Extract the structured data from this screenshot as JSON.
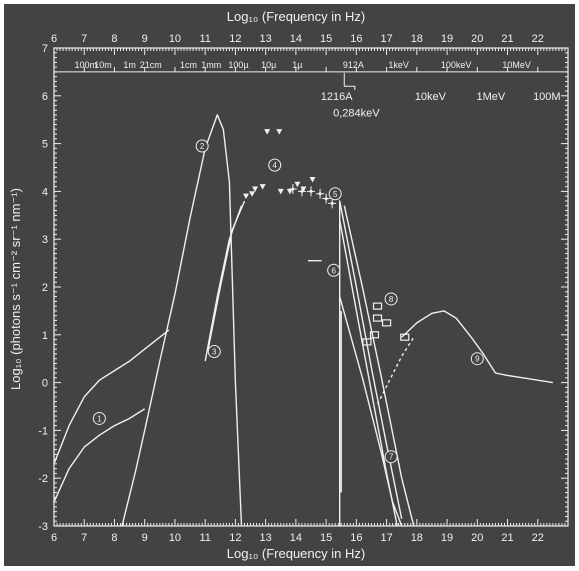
{
  "chart_data": {
    "type": "line",
    "title": "Log₁₀ (Frequency in Hz)",
    "xlabel": "Log₁₀ (Frequency in Hz)",
    "ylabel": "Log₁₀ (photons s⁻¹ cm⁻² sr⁻¹ nm⁻¹)",
    "xlim": [
      6,
      23
    ],
    "ylim": [
      -3,
      7
    ],
    "grid": false,
    "xticks": [
      "6",
      "7",
      "8",
      "9",
      "10",
      "11",
      "12",
      "13",
      "14",
      "15",
      "16",
      "17",
      "18",
      "19",
      "20",
      "21",
      "22"
    ],
    "yticks": [
      "7",
      "6",
      "5",
      "4",
      "3",
      "2",
      "1",
      "0",
      "-1",
      "-2",
      "-3"
    ],
    "wavelength_labels": [
      {
        "text": "100m",
        "x": 7.05
      },
      {
        "text": "10m",
        "x": 7.62
      },
      {
        "text": "1m",
        "x": 8.5
      },
      {
        "text": "21cm",
        "x": 9.2
      },
      {
        "text": "1cm",
        "x": 10.45
      },
      {
        "text": "1mm",
        "x": 11.2
      },
      {
        "text": "100µ",
        "x": 12.1
      },
      {
        "text": "10µ",
        "x": 13.1
      },
      {
        "text": "1µ",
        "x": 14.05
      },
      {
        "text": "912A",
        "x": 15.9
      },
      {
        "text": "1keV",
        "x": 17.4
      },
      {
        "text": "100keV",
        "x": 19.3
      },
      {
        "text": "10MeV",
        "x": 21.3
      }
    ],
    "energy_labels": [
      {
        "text": "1216A",
        "x": 15.35,
        "y": 6.0
      },
      {
        "text": "0,284keV",
        "x": 16.0,
        "y": 5.65
      },
      {
        "text": "10keV",
        "x": 18.45,
        "y": 6.0
      },
      {
        "text": "1MeV",
        "x": 20.45,
        "y": 6.0
      },
      {
        "text": "100M",
        "x": 22.3,
        "y": 6.0
      }
    ],
    "markers": [
      {
        "label": "1",
        "x": 7.5,
        "y": -0.75
      },
      {
        "label": "2",
        "x": 10.9,
        "y": 4.95
      },
      {
        "label": "3",
        "x": 11.3,
        "y": 0.65
      },
      {
        "label": "4",
        "x": 13.3,
        "y": 4.55
      },
      {
        "label": "5",
        "x": 15.3,
        "y": 3.95
      },
      {
        "label": "6",
        "x": 15.25,
        "y": 2.35
      },
      {
        "label": "7",
        "x": 17.15,
        "y": -1.55
      },
      {
        "label": "8",
        "x": 17.15,
        "y": 1.75
      },
      {
        "label": "9",
        "x": 20.0,
        "y": 0.5
      }
    ],
    "series": [
      {
        "values": [
          [
            6.0,
            -1.7
          ],
          [
            6.5,
            -0.9
          ],
          [
            7.0,
            -0.3
          ],
          [
            7.5,
            0.05
          ],
          [
            8.0,
            0.25
          ],
          [
            8.5,
            0.45
          ],
          [
            9.0,
            0.7
          ],
          [
            9.5,
            0.95
          ],
          [
            9.8,
            1.1
          ]
        ]
      },
      {
        "values": [
          [
            6.0,
            -2.5
          ],
          [
            6.5,
            -1.8
          ],
          [
            7.0,
            -1.35
          ],
          [
            7.5,
            -1.1
          ],
          [
            8.0,
            -0.9
          ],
          [
            8.5,
            -0.75
          ],
          [
            9.0,
            -0.55
          ]
        ]
      },
      {
        "values": [
          [
            8.25,
            -3.0
          ],
          [
            8.7,
            -1.85
          ],
          [
            9.0,
            -1.0
          ],
          [
            9.5,
            0.45
          ],
          [
            10.0,
            1.85
          ],
          [
            10.5,
            3.45
          ],
          [
            11.0,
            4.9
          ],
          [
            11.4,
            5.6
          ],
          [
            11.6,
            5.3
          ],
          [
            11.8,
            4.2
          ],
          [
            12.0,
            0.0
          ],
          [
            12.2,
            -3.0
          ]
        ]
      },
      {
        "values": [
          [
            11.0,
            0.45
          ],
          [
            11.4,
            1.8
          ],
          [
            11.8,
            3.0
          ],
          [
            12.2,
            3.7
          ]
        ]
      },
      {
        "values": [
          [
            11.1,
            0.7
          ],
          [
            11.5,
            2.0
          ],
          [
            11.9,
            3.2
          ],
          [
            12.3,
            3.8
          ]
        ]
      },
      {
        "values": [
          [
            15.45,
            -3.0
          ],
          [
            15.45,
            3.8
          ],
          [
            16.0,
            2.0
          ],
          [
            16.5,
            0.3
          ],
          [
            17.0,
            -1.3
          ],
          [
            17.5,
            -2.85
          ]
        ]
      },
      {
        "values": [
          [
            15.45,
            3.4
          ],
          [
            16.0,
            1.5
          ],
          [
            16.5,
            -0.2
          ],
          [
            17.0,
            -1.9
          ],
          [
            17.35,
            -3.0
          ]
        ]
      },
      {
        "values": [
          [
            15.45,
            1.8
          ],
          [
            16.2,
            0.1
          ],
          [
            16.8,
            -1.4
          ],
          [
            17.2,
            -2.5
          ],
          [
            17.5,
            -3.0
          ]
        ]
      },
      {
        "values": [
          [
            15.6,
            3.7
          ],
          [
            16.2,
            2.0
          ],
          [
            16.8,
            0.2
          ],
          [
            17.5,
            -2.0
          ],
          [
            17.9,
            -3.0
          ]
        ]
      },
      {
        "values": [
          [
            15.5,
            1.5
          ],
          [
            15.5,
            -2.3
          ]
        ]
      },
      {
        "values": [
          [
            17.5,
            0.95
          ],
          [
            18.0,
            1.25
          ],
          [
            18.5,
            1.45
          ],
          [
            18.9,
            1.5
          ],
          [
            19.3,
            1.35
          ],
          [
            19.8,
            0.95
          ],
          [
            20.2,
            0.6
          ],
          [
            20.6,
            0.2
          ],
          [
            21.0,
            0.15
          ],
          [
            21.5,
            0.1
          ],
          [
            22.0,
            0.05
          ],
          [
            22.5,
            0.0
          ]
        ]
      },
      {
        "values": [
          [
            16.7,
            -0.45
          ],
          [
            17.1,
            0.05
          ],
          [
            17.5,
            0.55
          ],
          [
            17.9,
            0.95
          ]
        ]
      },
      {
        "values": [
          [
            14.4,
            2.55
          ],
          [
            14.85,
            2.55
          ]
        ]
      }
    ],
    "triangles": [
      [
        13.05,
        5.25
      ],
      [
        13.45,
        5.25
      ],
      [
        14.55,
        4.25
      ],
      [
        14.05,
        4.15
      ],
      [
        13.8,
        4.0
      ],
      [
        12.65,
        4.05
      ],
      [
        12.9,
        4.1
      ],
      [
        12.35,
        3.9
      ],
      [
        12.55,
        3.95
      ],
      [
        13.5,
        4.0
      ],
      [
        14.25,
        4.05
      ]
    ],
    "error_points": [
      [
        13.9,
        4.05
      ],
      [
        14.2,
        4.0
      ],
      [
        14.5,
        4.0
      ],
      [
        14.8,
        3.95
      ],
      [
        15.0,
        3.85
      ],
      [
        15.2,
        3.75
      ]
    ],
    "squares": [
      [
        16.7,
        1.6
      ],
      [
        16.7,
        1.35
      ],
      [
        17.0,
        1.25
      ],
      [
        16.6,
        1.0
      ],
      [
        17.6,
        0.95
      ],
      [
        16.35,
        0.85
      ]
    ]
  }
}
